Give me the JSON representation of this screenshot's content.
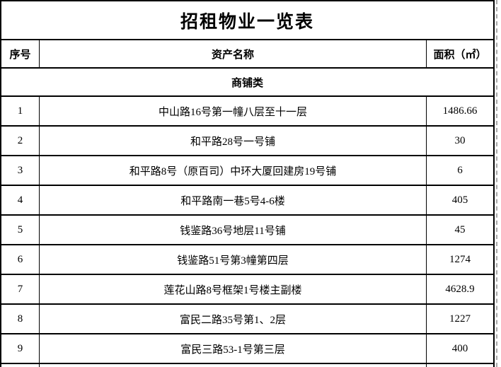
{
  "title": "招租物业一览表",
  "columns": {
    "no": "序号",
    "name": "资产名称",
    "area": "面积（㎡）"
  },
  "category": "商铺类",
  "rows": [
    {
      "no": "1",
      "name": "中山路16号第一幢八层至十一层",
      "area": "1486.66"
    },
    {
      "no": "2",
      "name": "和平路28号一号铺",
      "area": "30"
    },
    {
      "no": "3",
      "name": "和平路8号（原百司）中环大厦回建房19号铺",
      "area": "6"
    },
    {
      "no": "4",
      "name": "和平路南一巷5号4-6楼",
      "area": "405"
    },
    {
      "no": "5",
      "name": "钱鉴路36号地层11号铺",
      "area": "45"
    },
    {
      "no": "6",
      "name": "钱鉴路51号第3幢第四层",
      "area": "1274"
    },
    {
      "no": "7",
      "name": "莲花山路8号框架1号楼主副楼",
      "area": "4628.9"
    },
    {
      "no": "8",
      "name": "富民二路35号第1、2层",
      "area": "1227"
    },
    {
      "no": "9",
      "name": "富民三路53-1号第三层",
      "area": "400"
    }
  ]
}
